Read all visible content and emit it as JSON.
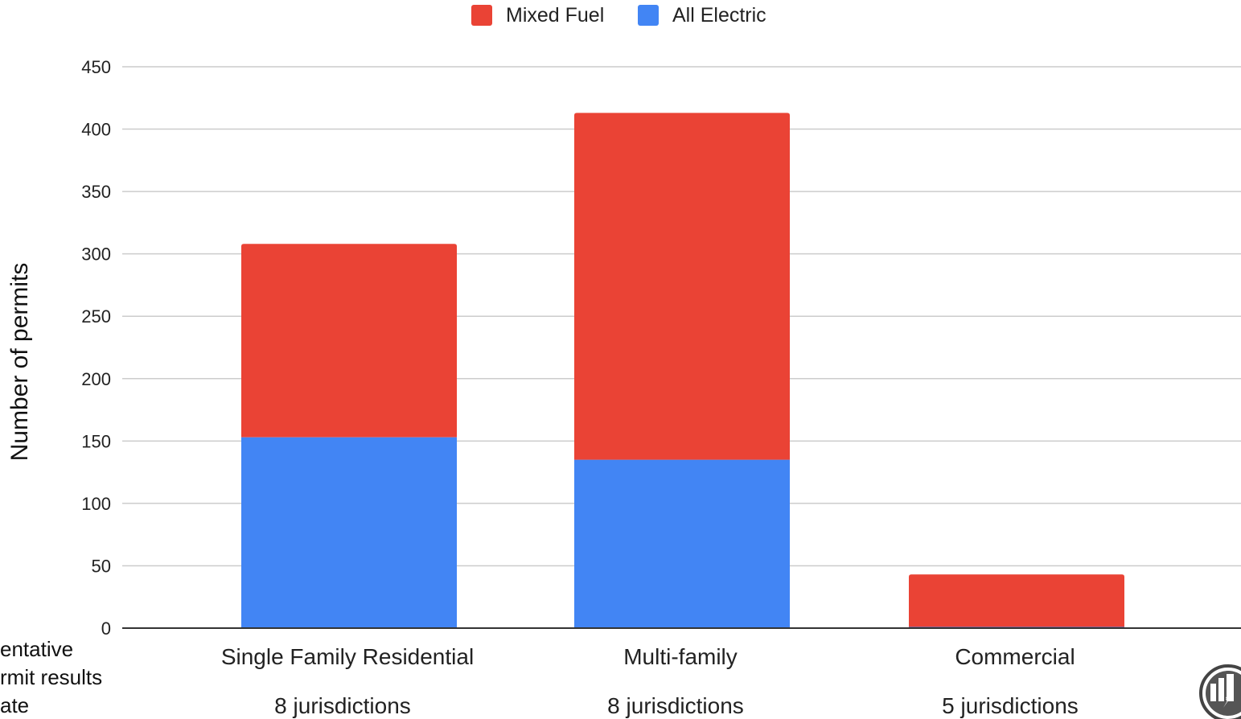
{
  "chart_data": {
    "type": "bar",
    "stacked": true,
    "categories": [
      "Single Family Residential",
      "Multi-family",
      "Commercial"
    ],
    "category_notes": [
      "8 jurisdictions",
      "8 jurisdictions",
      "5 jurisdictions"
    ],
    "series": [
      {
        "name": "All Electric",
        "color": "#4285f4",
        "values": [
          153,
          135,
          1
        ]
      },
      {
        "name": "Mixed Fuel",
        "color": "#ea4335",
        "values": [
          155,
          278,
          42
        ]
      }
    ],
    "legend_order": [
      "Mixed Fuel",
      "All Electric"
    ],
    "legend_position": "top",
    "ylabel": "Number of permits",
    "xlabel": "",
    "ylim": [
      0,
      450
    ],
    "yticks": [
      0,
      50,
      100,
      150,
      200,
      250,
      300,
      350,
      400,
      450
    ],
    "grid": true
  },
  "side_text": [
    "entative",
    "rmit results",
    "ate"
  ],
  "logo": {
    "icon": "building-lightning-logo-icon"
  }
}
